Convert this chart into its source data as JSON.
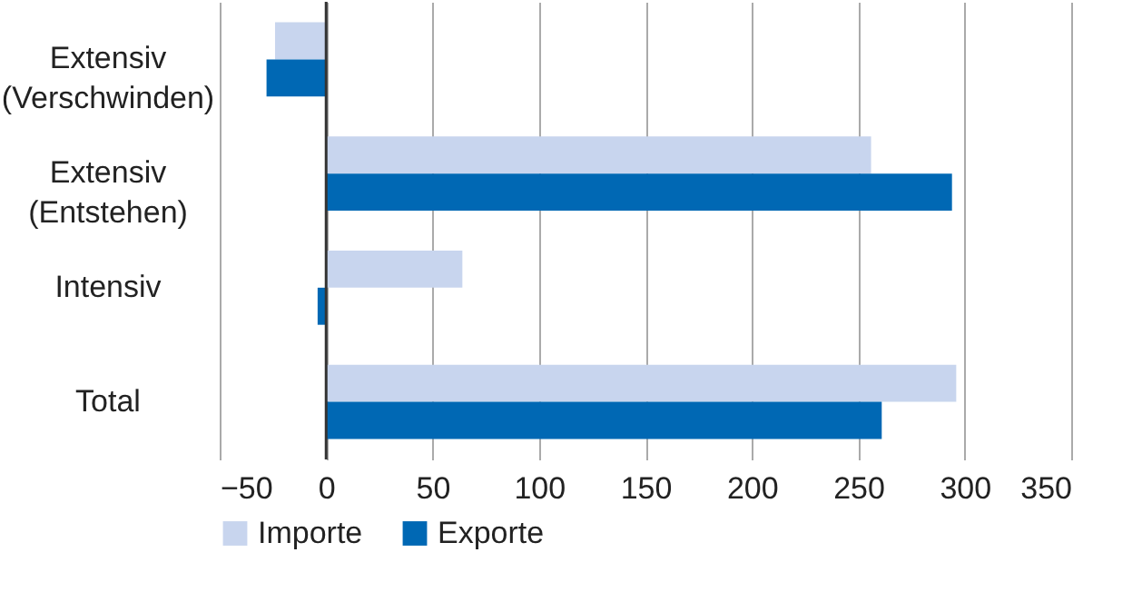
{
  "chart_data": {
    "type": "bar",
    "orientation": "horizontal",
    "categories": [
      "Extensiv (Verschwinden)",
      "Extensiv (Entstehen)",
      "Intensiv",
      "Total"
    ],
    "series": [
      {
        "name": "Importe",
        "color": "#c8d5ee",
        "values": [
          -24,
          256,
          64,
          296
        ]
      },
      {
        "name": "Exporte",
        "color": "#0068b4",
        "values": [
          -28,
          294,
          -4,
          261
        ]
      }
    ],
    "xlim": [
      -50,
      350
    ],
    "xticks": [
      -50,
      0,
      50,
      100,
      150,
      200,
      250,
      300,
      350
    ],
    "grid": "x",
    "legend": "bottom",
    "ref_lines": [
      {
        "axis": "x",
        "value": 0,
        "color": "#333333"
      }
    ]
  }
}
